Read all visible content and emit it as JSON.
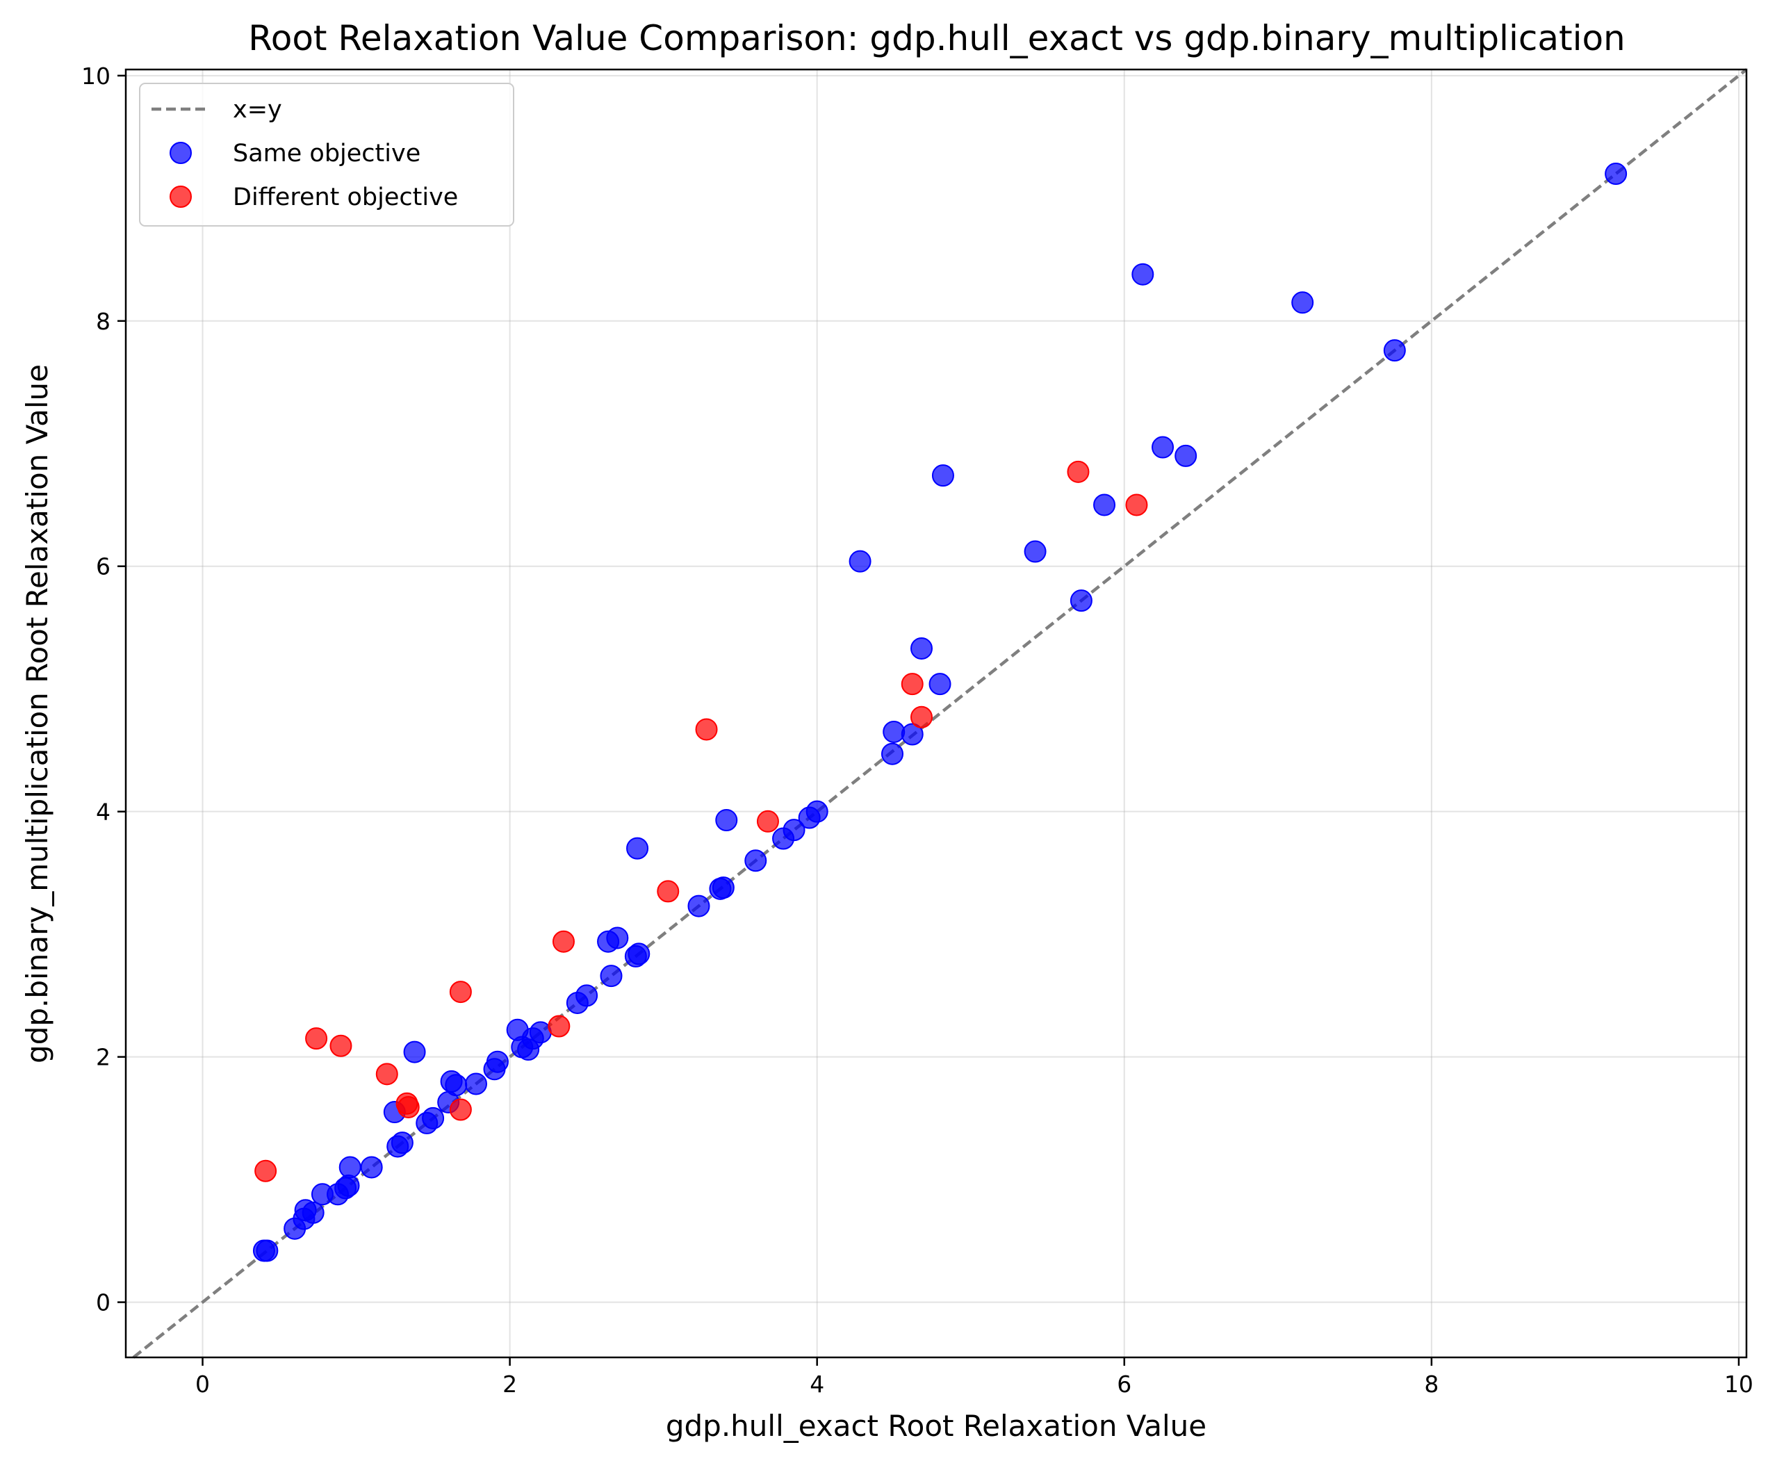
{
  "chart_data": {
    "type": "scatter",
    "title": "Root Relaxation Value Comparison: gdp.hull_exact vs gdp.binary_multiplication",
    "xlabel": "gdp.hull_exact Root Relaxation Value",
    "ylabel": "gdp.binary_multiplication Root Relaxation Value",
    "xlim": [
      -0.5,
      10.05
    ],
    "ylim": [
      -0.45,
      10.05
    ],
    "xticks": [
      0,
      2,
      4,
      6,
      8,
      10
    ],
    "yticks": [
      0,
      2,
      4,
      6,
      8,
      10
    ],
    "grid": true,
    "legend": {
      "position": "top-left",
      "line_label": "x=y",
      "entries": [
        "x=y",
        "Same objective",
        "Different objective"
      ]
    },
    "reference_line": {
      "name": "x=y",
      "style": "dashed",
      "color": "#7f7f7f"
    },
    "series": [
      {
        "name": "Same objective",
        "color": "#0000ff",
        "points": [
          [
            0.4,
            0.42
          ],
          [
            0.42,
            0.42
          ],
          [
            0.6,
            0.6
          ],
          [
            0.66,
            0.68
          ],
          [
            0.67,
            0.75
          ],
          [
            0.72,
            0.73
          ],
          [
            0.78,
            0.88
          ],
          [
            0.88,
            0.88
          ],
          [
            0.93,
            0.93
          ],
          [
            0.95,
            0.95
          ],
          [
            0.96,
            1.1
          ],
          [
            1.1,
            1.1
          ],
          [
            1.25,
            1.55
          ],
          [
            1.27,
            1.27
          ],
          [
            1.3,
            1.3
          ],
          [
            1.38,
            2.04
          ],
          [
            1.46,
            1.46
          ],
          [
            1.5,
            1.5
          ],
          [
            1.6,
            1.63
          ],
          [
            1.62,
            1.8
          ],
          [
            1.65,
            1.77
          ],
          [
            1.78,
            1.78
          ],
          [
            1.9,
            1.9
          ],
          [
            1.92,
            1.96
          ],
          [
            2.05,
            2.22
          ],
          [
            2.08,
            2.08
          ],
          [
            2.12,
            2.06
          ],
          [
            2.15,
            2.15
          ],
          [
            2.2,
            2.2
          ],
          [
            2.44,
            2.44
          ],
          [
            2.5,
            2.5
          ],
          [
            2.64,
            2.94
          ],
          [
            2.66,
            2.66
          ],
          [
            2.7,
            2.97
          ],
          [
            2.82,
            2.82
          ],
          [
            2.83,
            3.7
          ],
          [
            2.84,
            2.84
          ],
          [
            3.23,
            3.23
          ],
          [
            3.37,
            3.37
          ],
          [
            3.39,
            3.38
          ],
          [
            3.41,
            3.93
          ],
          [
            3.6,
            3.6
          ],
          [
            3.78,
            3.78
          ],
          [
            3.85,
            3.85
          ],
          [
            3.95,
            3.95
          ],
          [
            4.0,
            4.0
          ],
          [
            4.28,
            6.04
          ],
          [
            4.49,
            4.47
          ],
          [
            4.5,
            4.65
          ],
          [
            4.62,
            4.63
          ],
          [
            4.68,
            5.33
          ],
          [
            4.8,
            5.04
          ],
          [
            4.82,
            6.74
          ],
          [
            5.42,
            6.12
          ],
          [
            5.72,
            5.72
          ],
          [
            5.87,
            6.5
          ],
          [
            6.12,
            8.38
          ],
          [
            6.25,
            6.97
          ],
          [
            6.4,
            6.9
          ],
          [
            7.16,
            8.15
          ],
          [
            7.76,
            7.76
          ],
          [
            9.2,
            9.2
          ]
        ]
      },
      {
        "name": "Different objective",
        "color": "#ff0000",
        "points": [
          [
            0.41,
            1.07
          ],
          [
            0.74,
            2.15
          ],
          [
            0.9,
            2.09
          ],
          [
            1.2,
            1.86
          ],
          [
            1.33,
            1.62
          ],
          [
            1.34,
            1.59
          ],
          [
            1.68,
            1.57
          ],
          [
            1.68,
            2.53
          ],
          [
            2.32,
            2.25
          ],
          [
            2.35,
            2.94
          ],
          [
            3.03,
            3.35
          ],
          [
            3.28,
            4.67
          ],
          [
            3.68,
            3.92
          ],
          [
            4.62,
            5.04
          ],
          [
            4.68,
            4.77
          ],
          [
            5.7,
            6.77
          ],
          [
            6.08,
            6.5
          ]
        ]
      }
    ]
  }
}
